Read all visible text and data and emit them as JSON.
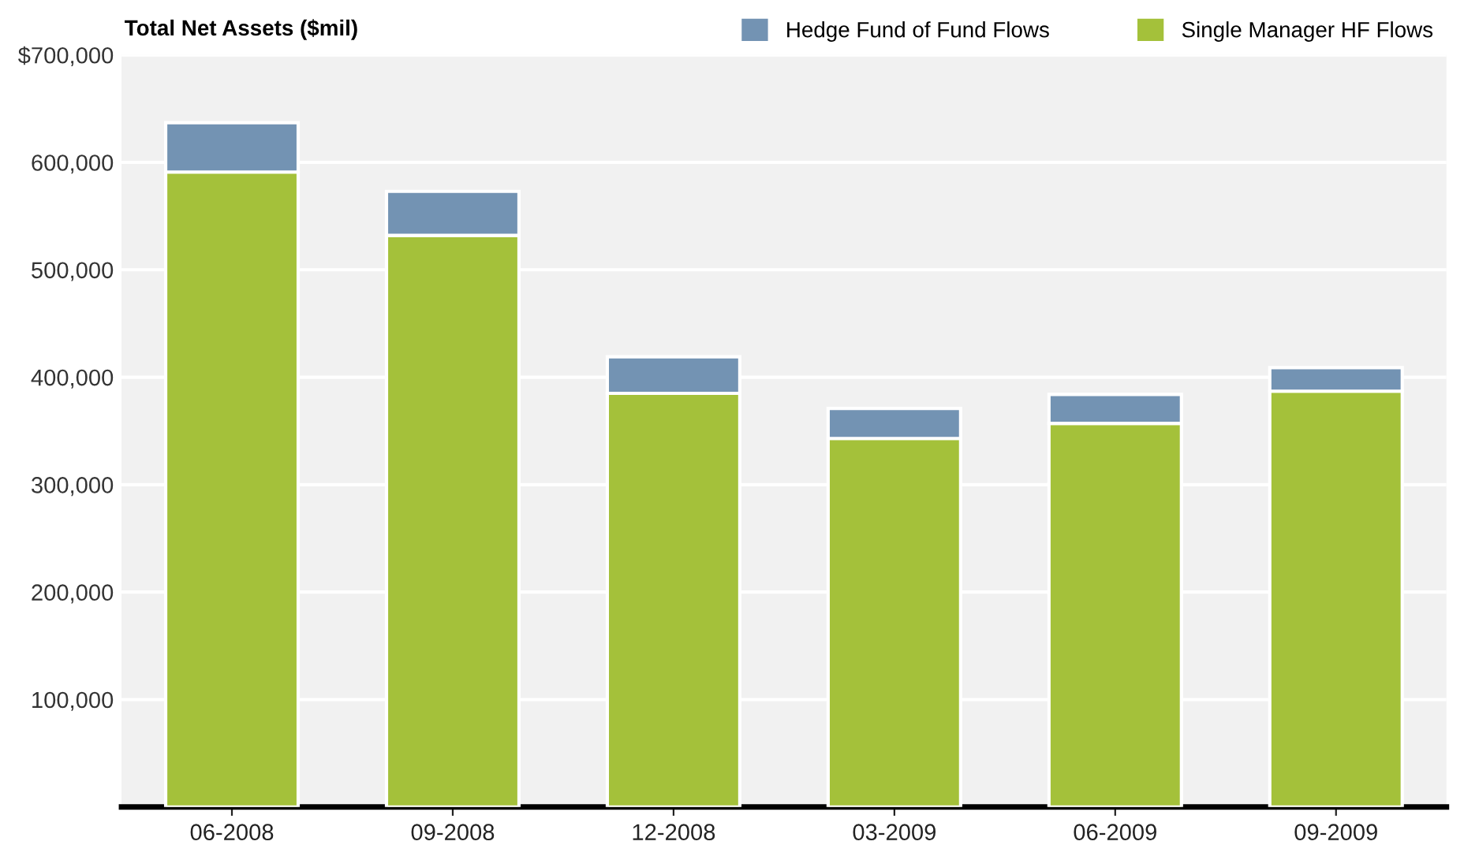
{
  "chart_data": {
    "type": "bar",
    "title": "Total Net Assets ($mil)",
    "stacked": true,
    "categories": [
      "06-2008",
      "09-2008",
      "12-2008",
      "03-2009",
      "06-2009",
      "09-2009"
    ],
    "series": [
      {
        "name": "Single Manager HF Flows",
        "color": "#a4c13a",
        "values": [
          591000,
          532000,
          385000,
          343000,
          357000,
          387000
        ]
      },
      {
        "name": "Hedge Fund of Fund Flows",
        "color": "#7393b3",
        "values": [
          46000,
          41000,
          34000,
          28000,
          27000,
          22000
        ]
      }
    ],
    "ylim": [
      0,
      700000
    ],
    "yticks": [
      {
        "value": 100000,
        "label": "100,000"
      },
      {
        "value": 200000,
        "label": "200,000"
      },
      {
        "value": 300000,
        "label": "300,000"
      },
      {
        "value": 400000,
        "label": "400,000"
      },
      {
        "value": 500000,
        "label": "500,000"
      },
      {
        "value": 600000,
        "label": "600,000"
      },
      {
        "value": 700000,
        "label": "$700,000"
      }
    ],
    "grid": "y",
    "legend": "top right"
  }
}
